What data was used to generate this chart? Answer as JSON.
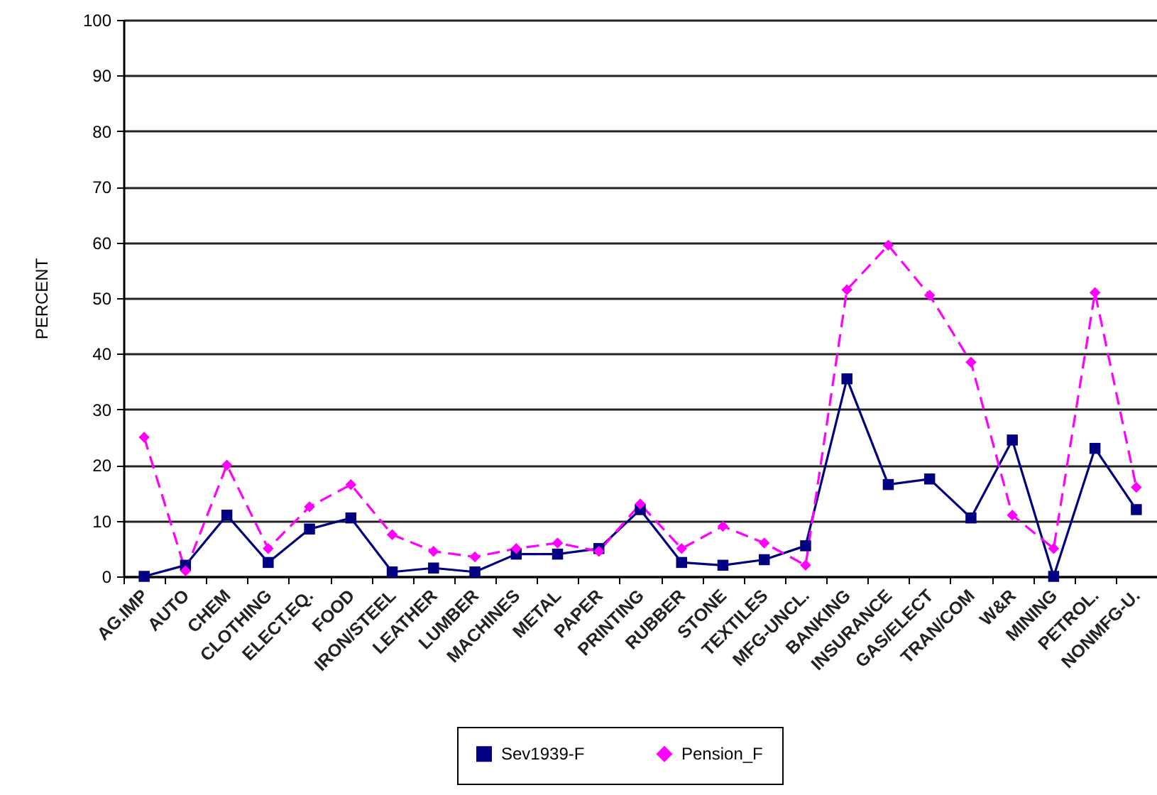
{
  "chart_data": {
    "type": "line",
    "ylabel": "PERCENT",
    "categories": [
      "AG.IMP",
      "AUTO",
      "CHEM",
      "CLOTHING",
      "ELECT.EQ.",
      "FOOD",
      "IRON/STEEL",
      "LEATHER",
      "LUMBER",
      "MACHINES",
      "METAL",
      "PAPER",
      "PRINTING",
      "RUBBER",
      "STONE",
      "TEXTILES",
      "MFG-UNCL.",
      "BANKING",
      "INSURANCE",
      "GAS/ELECT",
      "TRAN/COM",
      "W&R",
      "MINING",
      "PETROL.",
      "NONMFG-U."
    ],
    "series": [
      {
        "name": "Sev1939-F",
        "color": "#000080",
        "marker": "square",
        "line_style": "solid",
        "values": [
          0,
          2,
          11,
          2.5,
          8.5,
          10.5,
          0.8,
          1.5,
          0.8,
          4,
          4,
          5,
          12,
          2.5,
          2,
          3,
          5.5,
          35.5,
          16.5,
          17.5,
          10.5,
          24.5,
          0,
          23,
          12
        ]
      },
      {
        "name": "Pension_F",
        "color": "#ff00ff",
        "marker": "diamond",
        "line_style": "dashed",
        "values": [
          25,
          1,
          20,
          5,
          12.5,
          16.5,
          7.5,
          4.5,
          3.5,
          5,
          6,
          4.5,
          13,
          5,
          9,
          6,
          2,
          51.5,
          59.5,
          50.5,
          38.5,
          11,
          5,
          51,
          16
        ]
      }
    ],
    "ylim": [
      0,
      100
    ],
    "yticks": [
      0,
      10,
      20,
      30,
      40,
      50,
      60,
      70,
      80,
      90,
      100
    ],
    "grid": "y",
    "legend": "bottom"
  }
}
